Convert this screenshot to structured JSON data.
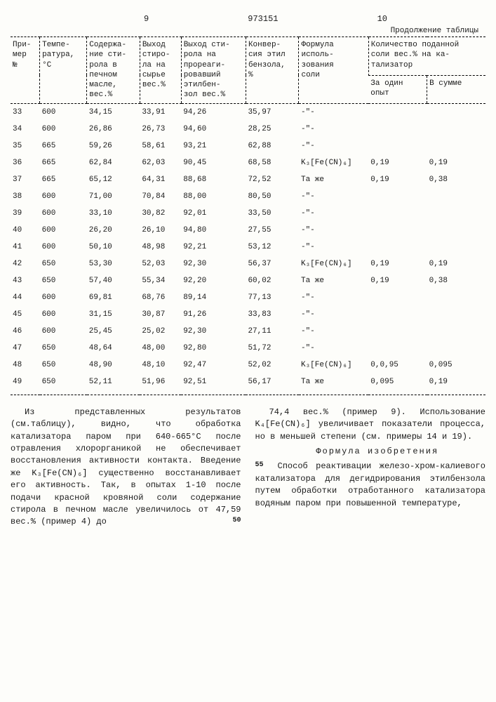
{
  "header": {
    "left_num": "9",
    "doc_num": "973151",
    "right_num": "10",
    "continuation": "Продолжение таблицы"
  },
  "table": {
    "columns": {
      "c1": "При-\nмер\n№",
      "c2": "Темпе-\nратура,\n°C",
      "c3": "Содержа-\nние сти-\nрола в\nпечном\nмасле,\nвес.%",
      "c4": "Выход\nстиро-\nла на\nсырье\nвес.%",
      "c5": "Выход сти-\nрола на\nпрореаги-\nровавший\nэтилбен-\nзол вес.%",
      "c6": "Конвер-\nсия этил\nбензола,\n%",
      "c7": "Формула\nисполь-\nзования\nсоли",
      "c8": "Количество поданной\nсоли вес.% на ка-\nтализатор",
      "c8a": "За один\nопыт",
      "c8b": "В сумме"
    },
    "rows": [
      [
        "33",
        "600",
        "34,15",
        "33,91",
        "94,26",
        "35,97",
        "-\"-",
        "",
        ""
      ],
      [
        "34",
        "600",
        "26,86",
        "26,73",
        "94,60",
        "28,25",
        "-\"-",
        "",
        ""
      ],
      [
        "35",
        "665",
        "59,26",
        "58,61",
        "93,21",
        "62,88",
        "-\"-",
        "",
        ""
      ],
      [
        "36",
        "665",
        "62,84",
        "62,03",
        "90,45",
        "68,58",
        "K₃[Fe(CN)₆]",
        "0,19",
        "0,19"
      ],
      [
        "37",
        "665",
        "65,12",
        "64,31",
        "88,68",
        "72,52",
        "Та же",
        "0,19",
        "0,38"
      ],
      [
        "38",
        "600",
        "71,00",
        "70,84",
        "88,00",
        "80,50",
        "-\"-",
        "",
        ""
      ],
      [
        "39",
        "600",
        "33,10",
        "30,82",
        "92,01",
        "33,50",
        "-\"-",
        "",
        ""
      ],
      [
        "40",
        "600",
        "26,20",
        "26,10",
        "94,80",
        "27,55",
        "-\"-",
        "",
        ""
      ],
      [
        "41",
        "600",
        "50,10",
        "48,98",
        "92,21",
        "53,12",
        "-\"-",
        "",
        ""
      ],
      [
        "42",
        "650",
        "53,30",
        "52,03",
        "92,30",
        "56,37",
        "K₃[Fe(CN)₆]",
        "0,19",
        "0,19"
      ],
      [
        "43",
        "650",
        "57,40",
        "55,34",
        "92,20",
        "60,02",
        "Та же",
        "0,19",
        "0,38"
      ],
      [
        "44",
        "600",
        "69,81",
        "68,76",
        "89,14",
        "77,13",
        "-\"-",
        "",
        ""
      ],
      [
        "45",
        "600",
        "31,15",
        "30,87",
        "91,26",
        "33,83",
        "-\"-",
        "",
        ""
      ],
      [
        "46",
        "600",
        "25,45",
        "25,02",
        "92,30",
        "27,11",
        "-\"-",
        "",
        ""
      ],
      [
        "47",
        "650",
        "48,64",
        "48,00",
        "92,80",
        "51,72",
        "-\"-",
        "",
        ""
      ],
      [
        "48",
        "650",
        "48,90",
        "48,10",
        "92,47",
        "52,02",
        "K₃[Fe(CN)₆]",
        "0,0,95",
        "0,095"
      ],
      [
        "49",
        "650",
        "52,11",
        "51,96",
        "92,51",
        "56,17",
        "Та же",
        "0,095",
        "0,19"
      ]
    ]
  },
  "body": {
    "left_p1": "Из представленных результатов (см.таблицу), видно, что обработка катализатора паром при 640-665°C после отравления хлорорганикой не обеспечивает восстановления активности контакта. Введение же K₃[Fe(CN)₆] существенно восстанавливает его активность. Так, в опытах 1-10 после подачи красной кровяной соли содержание стирола в печном масле увеличилось от 47,59 вес.% (пример 4) до",
    "right_p1": "74,4 вес.% (пример 9). Использование K₄[Fe(CN)₆] увеличивает показатели процесса, но в меньшей степени (см. примеры 14 и 19).",
    "formula_title": "Формула изобретения",
    "right_p2": "Способ реактивации железо-хром-калиевого катализатора для дегидрирования этилбензола путем обработки отработанного катализатора водяным паром при повышенной температуре,",
    "marker50": "50",
    "marker55": "55"
  }
}
